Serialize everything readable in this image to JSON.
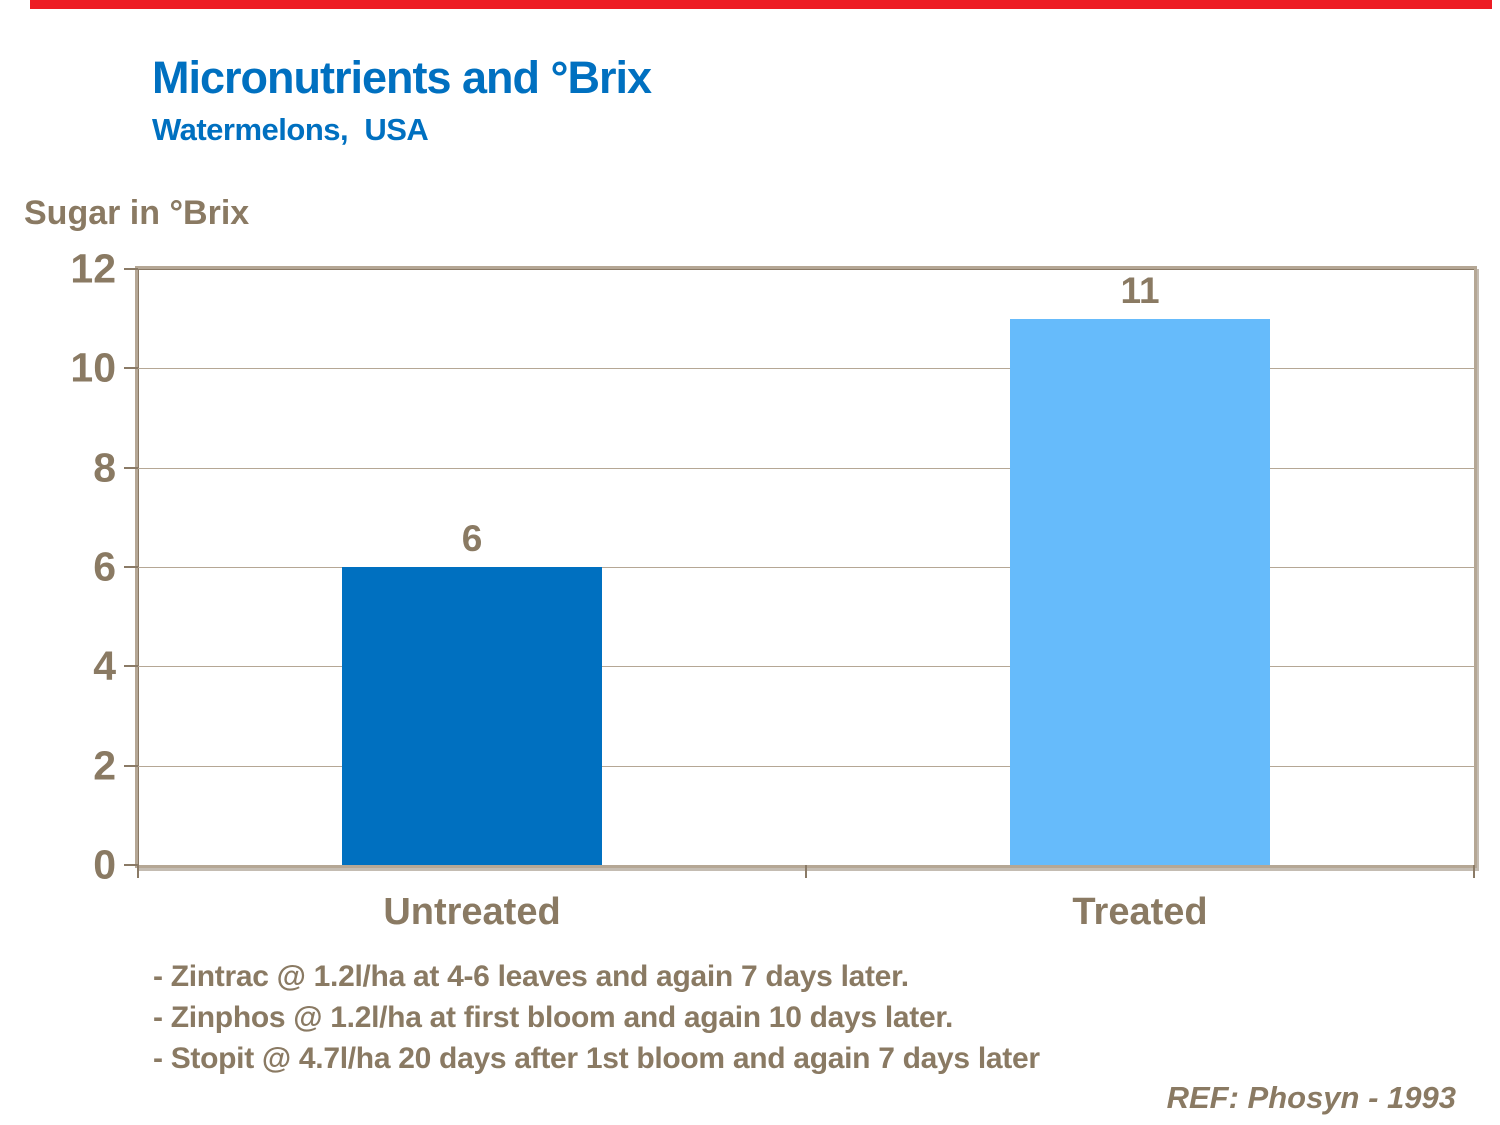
{
  "header": {
    "title": "Micronutrients and °Brix",
    "subtitle": "Watermelons,  USA"
  },
  "chart_data": {
    "type": "bar",
    "title": "Micronutrients and °Brix",
    "subtitle": "Watermelons, USA",
    "ylabel": "Sugar in °Brix",
    "xlabel": "",
    "categories": [
      "Untreated",
      "Treated"
    ],
    "values": [
      6,
      11
    ],
    "bar_colors": [
      "#0070C0",
      "#66BBFB"
    ],
    "ylim": [
      0,
      12
    ],
    "yticks": [
      0,
      2,
      4,
      6,
      8,
      10,
      12
    ],
    "grid": true,
    "legend": false
  },
  "footnotes": {
    "lines": [
      "- Zintrac @ 1.2l/ha at 4-6 leaves and again 7 days later.",
      "- Zinphos @ 1.2l/ha at first bloom and again 10 days later.",
      "- Stopit @ 4.7l/ha 20 days after 1st bloom and again 7 days later"
    ],
    "reference": "REF: Phosyn - 1993"
  },
  "colors": {
    "title_blue": "#0070C0",
    "text_brown": "#8A7A63",
    "grid_tan": "#B5A795",
    "frame_tan": "#B5A795",
    "axis_dark": "#8A7A66",
    "top_bar_red": "#ED1C24"
  }
}
